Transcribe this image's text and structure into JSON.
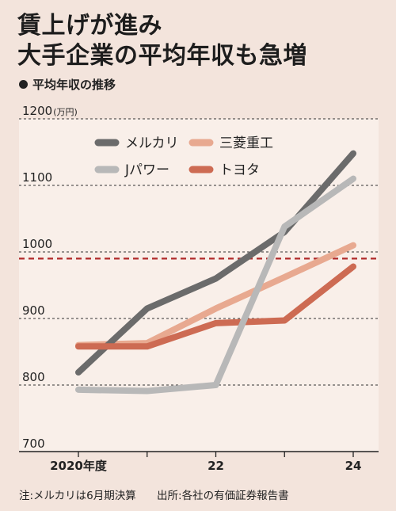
{
  "header": {
    "title_line1": "賃上げが進み",
    "title_line2": "大手企業の平均年収も急増",
    "subtitle": "平均年収の推移"
  },
  "footer": {
    "note": "注:メルカリは6月期決算",
    "source": "出所:各社の有価証券報告書"
  },
  "colors": {
    "background": "#f3e4dc",
    "plot_background": "#f9efe9",
    "reference_line": "#b02a2a"
  },
  "chart_data": {
    "type": "line",
    "unit_label": "(万円)",
    "x": [
      2020,
      2021,
      2022,
      2023,
      2024
    ],
    "x_tick_labels": [
      {
        "x": 2020,
        "label": "2020年度"
      },
      {
        "x": 2022,
        "label": "22"
      },
      {
        "x": 2024,
        "label": "24"
      }
    ],
    "ylim": [
      700,
      1200
    ],
    "y_ticks": [
      700,
      800,
      900,
      1000,
      1100,
      1200
    ],
    "reference_line": 990,
    "legend_position": "top",
    "series": [
      {
        "name": "メルカリ",
        "color": "#6b6b6b",
        "values": [
          819,
          915,
          960,
          1030,
          1148
        ]
      },
      {
        "name": "三菱重工",
        "color": "#e8a990",
        "values": [
          860,
          863,
          915,
          962,
          1010
        ]
      },
      {
        "name": "Jパワー",
        "color": "#b8b8b8",
        "values": [
          793,
          791,
          800,
          1038,
          1110
        ]
      },
      {
        "name": "トヨタ",
        "color": "#cd6b53",
        "values": [
          858,
          858,
          893,
          897,
          978
        ]
      }
    ]
  }
}
